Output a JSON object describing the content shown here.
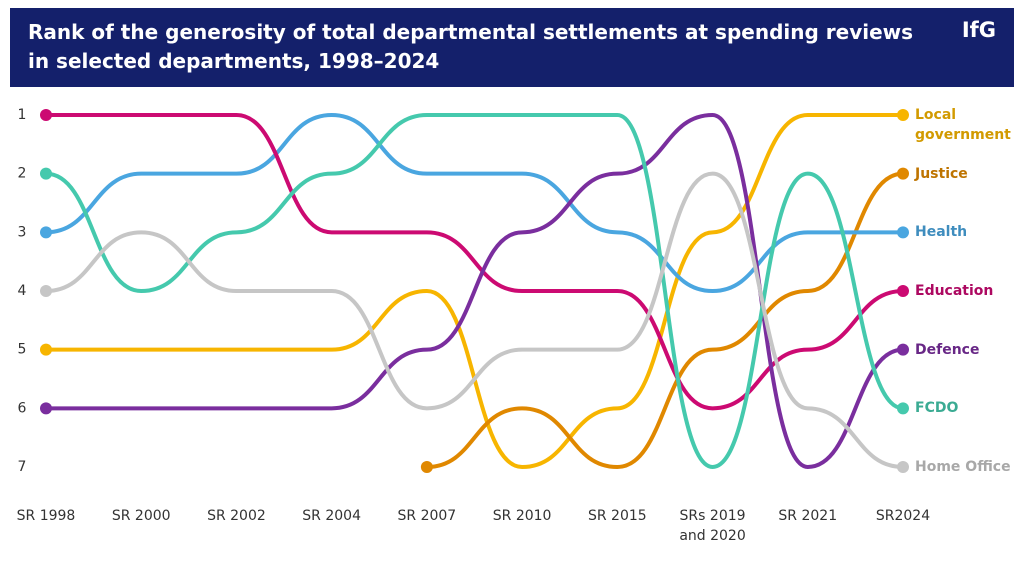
{
  "chart_data": {
    "type": "bump",
    "title": "Rank of the generosity of total departmental settlements at spending reviews in selected departments, 1998–2024",
    "logo": "IfG",
    "categories": [
      "SR 1998",
      "SR 2000",
      "SR 2002",
      "SR 2004",
      "SR 2007",
      "SR 2010",
      "SR 2015",
      "SRs 2019 and 2020",
      "SR 2021",
      "SR2024"
    ],
    "ylim": [
      7,
      1
    ],
    "yticks": [
      1,
      2,
      3,
      4,
      5,
      6,
      7
    ],
    "grid": false,
    "series": [
      {
        "name": "Local government",
        "color": "#f7b500",
        "values": [
          5,
          5,
          5,
          5,
          4,
          7,
          6,
          3,
          1,
          1
        ]
      },
      {
        "name": "Justice",
        "color": "#e08800",
        "values": [
          null,
          null,
          null,
          null,
          7,
          6,
          7,
          5,
          4,
          2
        ]
      },
      {
        "name": "Health",
        "color": "#4aa6e0",
        "values": [
          3,
          2,
          2,
          1,
          2,
          2,
          3,
          4,
          3,
          3
        ]
      },
      {
        "name": "Education",
        "color": "#cc0a72",
        "values": [
          1,
          1,
          1,
          3,
          3,
          4,
          4,
          6,
          5,
          4
        ]
      },
      {
        "name": "Defence",
        "color": "#7a2e9e",
        "values": [
          6,
          6,
          6,
          6,
          5,
          3,
          2,
          1,
          7,
          5
        ]
      },
      {
        "name": "FCDO",
        "color": "#45c9ad",
        "values": [
          2,
          4,
          3,
          2,
          1,
          1,
          1,
          7,
          2,
          6
        ]
      },
      {
        "name": "Home Office",
        "color": "#c6c6c6",
        "values": [
          4,
          3,
          4,
          4,
          6,
          5,
          5,
          2,
          6,
          7
        ]
      }
    ]
  }
}
